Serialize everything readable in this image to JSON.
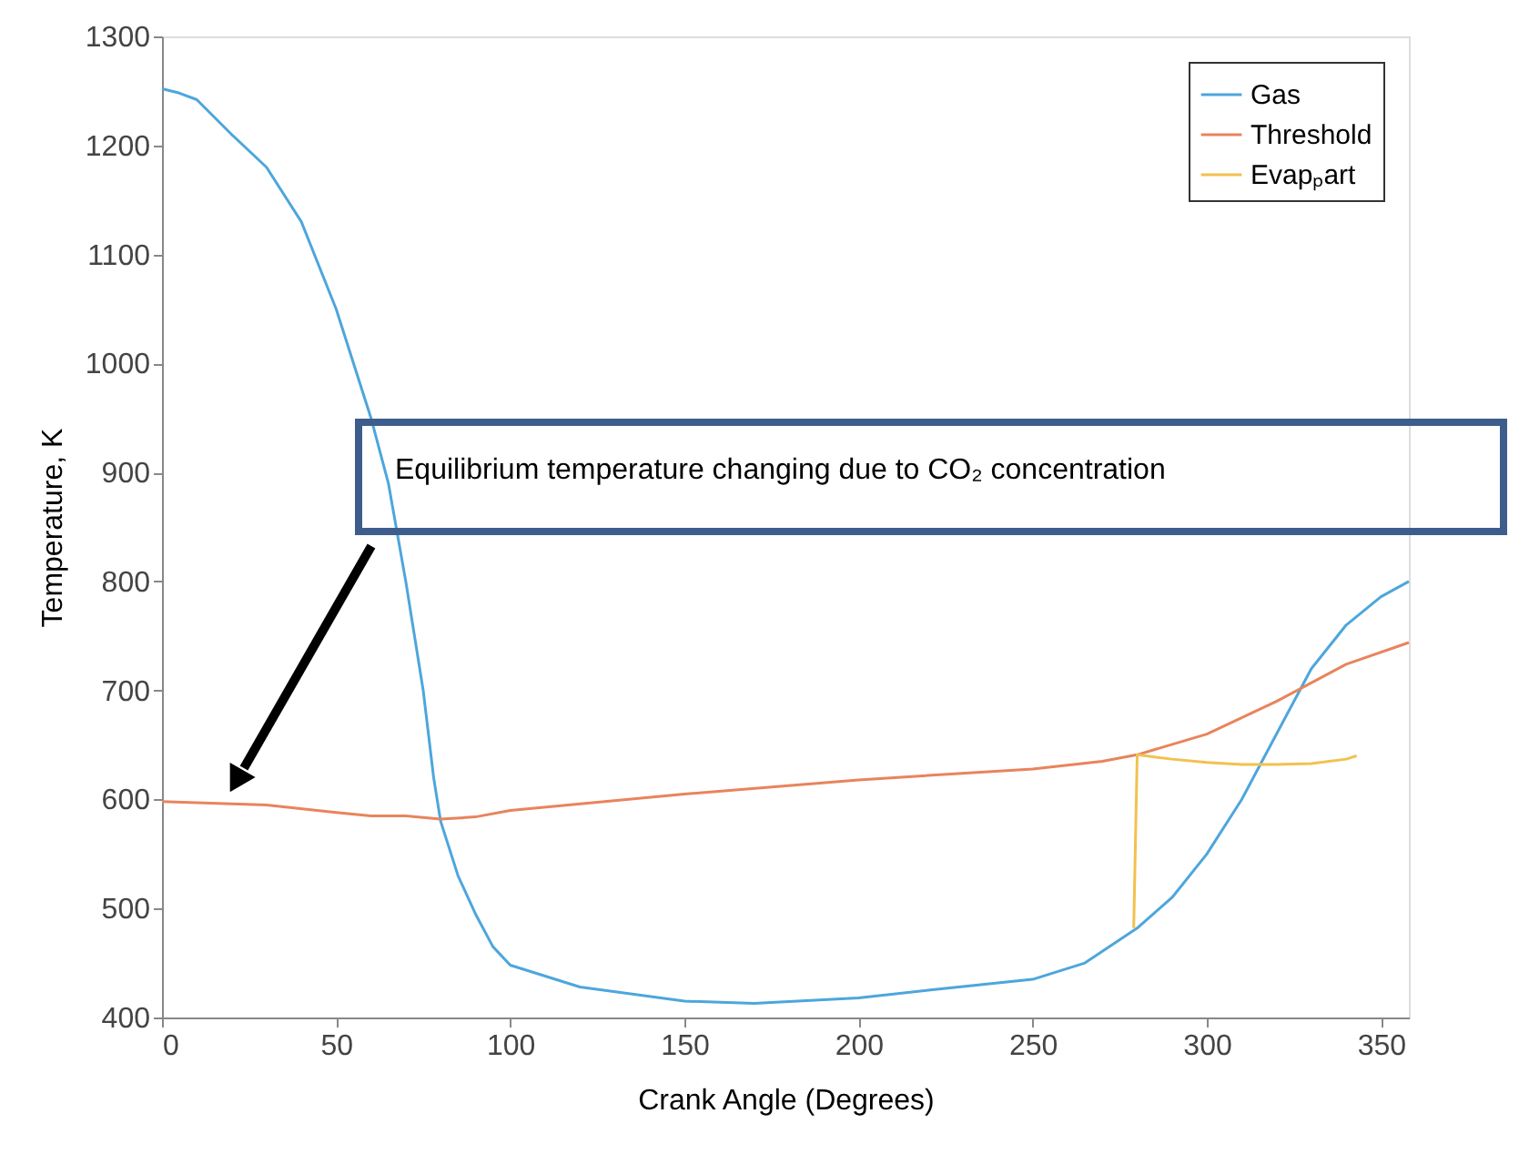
{
  "chart_data": {
    "type": "line",
    "xlabel": "Crank Angle (Degrees)",
    "ylabel": "Temperature, K",
    "xlim": [
      0,
      358
    ],
    "xticks": [
      0,
      50,
      100,
      150,
      200,
      250,
      300,
      350
    ],
    "ylim": [
      400,
      1300
    ],
    "yticks": [
      400,
      500,
      600,
      700,
      800,
      900,
      1000,
      1100,
      1200,
      1300
    ],
    "grid": false,
    "legend": "top right",
    "annotations": [
      "Equilibrium temperature changing due to CO₂ concentration"
    ],
    "series": [
      {
        "name": "Gas",
        "color": "#4da6dc",
        "x": [
          0,
          5,
          10,
          20,
          30,
          40,
          50,
          60,
          65,
          70,
          75,
          78,
          80,
          85,
          90,
          95,
          100,
          120,
          150,
          170,
          200,
          220,
          250,
          265,
          280,
          290,
          300,
          310,
          320,
          330,
          340,
          350,
          358
        ],
        "values": [
          1252,
          1248,
          1242,
          1210,
          1180,
          1130,
          1050,
          950,
          890,
          800,
          700,
          620,
          580,
          530,
          495,
          465,
          448,
          428,
          415,
          413,
          418,
          425,
          435,
          450,
          482,
          510,
          550,
          600,
          660,
          720,
          760,
          786,
          800
        ]
      },
      {
        "name": "Threshold",
        "color": "#e8845c",
        "x": [
          0,
          20,
          30,
          50,
          60,
          70,
          80,
          90,
          100,
          150,
          200,
          250,
          270,
          280,
          300,
          320,
          340,
          358
        ],
        "values": [
          598,
          596,
          595,
          588,
          585,
          585,
          582,
          584,
          590,
          605,
          618,
          628,
          635,
          641,
          660,
          690,
          724,
          744
        ]
      },
      {
        "name": "Evapₚart",
        "color": "#f2c14e",
        "x": [
          279,
          280,
          290,
          300,
          310,
          320,
          330,
          340,
          343
        ],
        "values": [
          482,
          641,
          637,
          634,
          632,
          632,
          633,
          637,
          640
        ]
      }
    ]
  }
}
